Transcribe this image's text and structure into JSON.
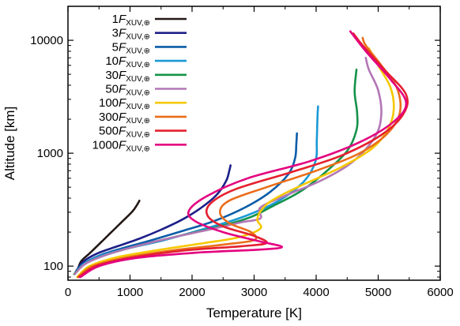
{
  "chart_data": {
    "type": "line",
    "title": "",
    "xlabel": "Temperature [K]",
    "ylabel": "Altitude [km]",
    "xlim": [
      0,
      6000
    ],
    "ylim": [
      75,
      20000
    ],
    "yscale": "log",
    "x_ticks": [
      0,
      1000,
      2000,
      3000,
      4000,
      5000,
      6000
    ],
    "x_tick_labels": [
      "0",
      "1000",
      "2000",
      "3000",
      "4000",
      "5000",
      "6000"
    ],
    "y_ticks": [
      100,
      1000,
      10000
    ],
    "y_tick_labels": [
      "100",
      "1000",
      "10000"
    ],
    "grid": false,
    "legend_position": "top-left",
    "legend_symbol": "F",
    "legend_subscript": "XUV,⊕",
    "series": [
      {
        "name": "1",
        "color": "#231815",
        "points": [
          [
            150,
            90
          ],
          [
            210,
            110
          ],
          [
            350,
            130
          ],
          [
            520,
            160
          ],
          [
            700,
            200
          ],
          [
            880,
            250
          ],
          [
            1050,
            310
          ],
          [
            1140,
            370
          ],
          [
            1150,
            380
          ]
        ]
      },
      {
        "name": "3",
        "color": "#1d2088",
        "points": [
          [
            130,
            90
          ],
          [
            250,
            110
          ],
          [
            480,
            130
          ],
          [
            800,
            150
          ],
          [
            1150,
            175
          ],
          [
            1500,
            210
          ],
          [
            1850,
            260
          ],
          [
            2150,
            330
          ],
          [
            2400,
            430
          ],
          [
            2550,
            570
          ],
          [
            2600,
            700
          ],
          [
            2620,
            780
          ]
        ]
      },
      {
        "name": "5",
        "color": "#0a5ca8",
        "points": [
          [
            120,
            88
          ],
          [
            250,
            105
          ],
          [
            520,
            125
          ],
          [
            900,
            145
          ],
          [
            1350,
            170
          ],
          [
            1850,
            205
          ],
          [
            2350,
            250
          ],
          [
            2850,
            330
          ],
          [
            3250,
            450
          ],
          [
            3550,
            650
          ],
          [
            3660,
            900
          ],
          [
            3680,
            1200
          ],
          [
            3690,
            1500
          ]
        ]
      },
      {
        "name": "10",
        "color": "#1a9ad6",
        "points": [
          [
            110,
            85
          ],
          [
            260,
            105
          ],
          [
            550,
            125
          ],
          [
            1000,
            145
          ],
          [
            1550,
            170
          ],
          [
            2150,
            210
          ],
          [
            2800,
            270
          ],
          [
            3400,
            380
          ],
          [
            3800,
            560
          ],
          [
            3990,
            850
          ],
          [
            4010,
            1300
          ],
          [
            4020,
            2000
          ],
          [
            4030,
            2600
          ]
        ]
      },
      {
        "name": "30",
        "color": "#14924a",
        "points": [
          [
            100,
            85
          ],
          [
            280,
            105
          ],
          [
            600,
            125
          ],
          [
            1100,
            150
          ],
          [
            1700,
            180
          ],
          [
            2300,
            215
          ],
          [
            2750,
            250
          ],
          [
            3000,
            280
          ],
          [
            3300,
            340
          ],
          [
            3750,
            460
          ],
          [
            4150,
            680
          ],
          [
            4500,
            1050
          ],
          [
            4650,
            1600
          ],
          [
            4660,
            2300
          ],
          [
            4620,
            3500
          ],
          [
            4650,
            5500
          ]
        ]
      },
      {
        "name": "50",
        "color": "#b376b6",
        "points": [
          [
            110,
            85
          ],
          [
            280,
            105
          ],
          [
            600,
            125
          ],
          [
            1100,
            150
          ],
          [
            1700,
            180
          ],
          [
            2350,
            215
          ],
          [
            2800,
            245
          ],
          [
            3100,
            265
          ],
          [
            3100,
            330
          ],
          [
            3500,
            420
          ],
          [
            4100,
            580
          ],
          [
            4600,
            850
          ],
          [
            4950,
            1400
          ],
          [
            5050,
            2200
          ],
          [
            5000,
            3600
          ],
          [
            4850,
            5500
          ],
          [
            4800,
            7000
          ]
        ]
      },
      {
        "name": "100",
        "color": "#f5c800",
        "points": [
          [
            150,
            80
          ],
          [
            350,
            100
          ],
          [
            800,
            120
          ],
          [
            1500,
            140
          ],
          [
            2200,
            160
          ],
          [
            2750,
            180
          ],
          [
            3100,
            215
          ],
          [
            3050,
            260
          ],
          [
            3150,
            330
          ],
          [
            3350,
            400
          ],
          [
            3800,
            530
          ],
          [
            4400,
            750
          ],
          [
            4900,
            1100
          ],
          [
            5150,
            1600
          ],
          [
            5250,
            2400
          ],
          [
            5200,
            3800
          ],
          [
            5000,
            6000
          ],
          [
            4850,
            8500
          ]
        ]
      },
      {
        "name": "300",
        "color": "#ea6e1a",
        "points": [
          [
            160,
            80
          ],
          [
            400,
            100
          ],
          [
            900,
            118
          ],
          [
            1700,
            138
          ],
          [
            2500,
            155
          ],
          [
            3000,
            170
          ],
          [
            2950,
            200
          ],
          [
            2600,
            240
          ],
          [
            2450,
            300
          ],
          [
            2600,
            380
          ],
          [
            3200,
            500
          ],
          [
            4000,
            700
          ],
          [
            4700,
            1000
          ],
          [
            5150,
            1500
          ],
          [
            5350,
            2300
          ],
          [
            5300,
            3800
          ],
          [
            5050,
            6000
          ],
          [
            4800,
            9000
          ],
          [
            4750,
            10500
          ]
        ]
      },
      {
        "name": "500",
        "color": "#e5202e",
        "points": [
          [
            180,
            80
          ],
          [
            450,
            100
          ],
          [
            1000,
            118
          ],
          [
            1900,
            138
          ],
          [
            2800,
            150
          ],
          [
            3200,
            160
          ],
          [
            3000,
            185
          ],
          [
            2500,
            225
          ],
          [
            2250,
            280
          ],
          [
            2300,
            360
          ],
          [
            2700,
            480
          ],
          [
            3600,
            680
          ],
          [
            4400,
            950
          ],
          [
            5050,
            1450
          ],
          [
            5400,
            2200
          ],
          [
            5450,
            3300
          ],
          [
            5100,
            5500
          ],
          [
            4750,
            9000
          ],
          [
            4600,
            11500
          ]
        ]
      },
      {
        "name": "1000",
        "color": "#e4007f",
        "points": [
          [
            200,
            80
          ],
          [
            500,
            100
          ],
          [
            1100,
            118
          ],
          [
            2100,
            132
          ],
          [
            3100,
            140
          ],
          [
            3450,
            148
          ],
          [
            3100,
            165
          ],
          [
            2500,
            200
          ],
          [
            2050,
            250
          ],
          [
            1950,
            310
          ],
          [
            2250,
            420
          ],
          [
            2900,
            600
          ],
          [
            3900,
            850
          ],
          [
            4700,
            1250
          ],
          [
            5250,
            1900
          ],
          [
            5450,
            2800
          ],
          [
            5200,
            4500
          ],
          [
            4800,
            8000
          ],
          [
            4550,
            12000
          ]
        ]
      }
    ]
  }
}
